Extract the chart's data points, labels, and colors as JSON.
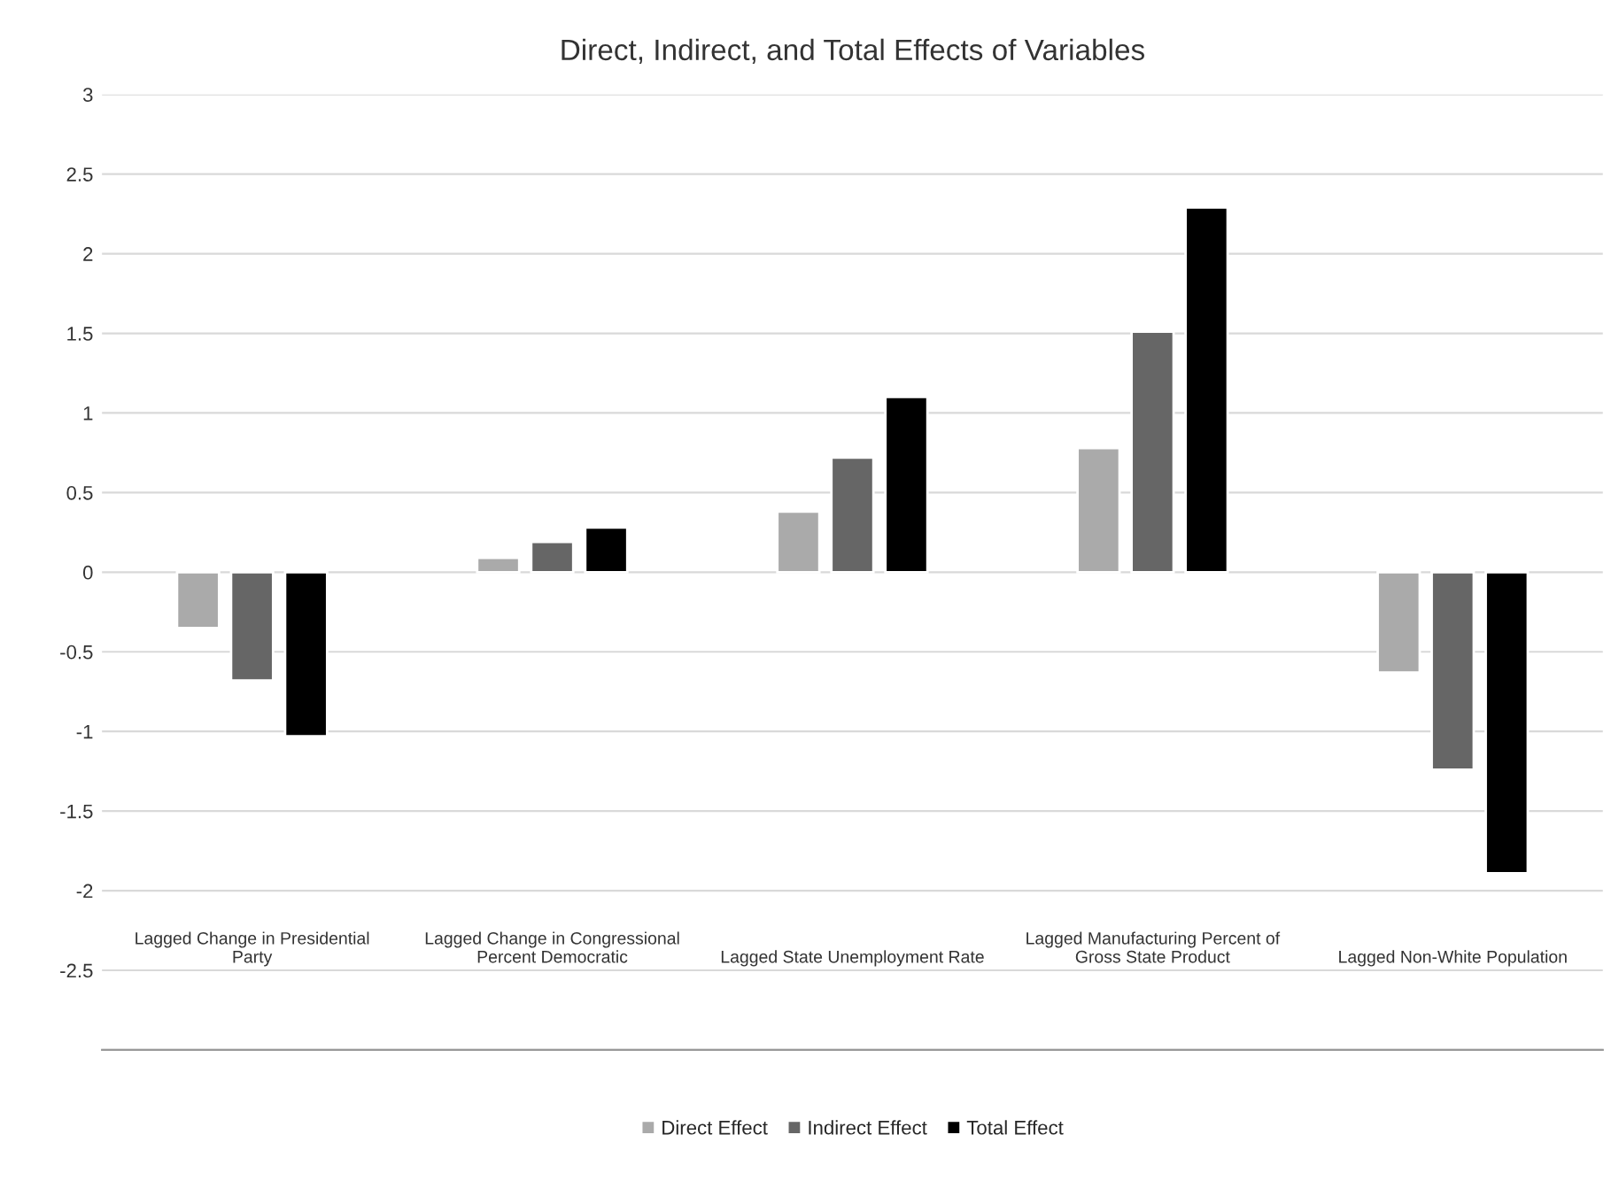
{
  "chart_data": {
    "type": "bar",
    "title": "Direct, Indirect, and Total Effects of Variables",
    "categories": [
      "Lagged Change in Presidential\nParty",
      "Lagged Change in Congressional\nPercent Democratic",
      "Lagged State Unemployment Rate",
      "Lagged Manufacturing Percent of\nGross State Product",
      "Lagged Non-White Population"
    ],
    "series": [
      {
        "name": "Direct Effect",
        "color": "#aaaaaa",
        "values": [
          -0.35,
          0.09,
          0.38,
          0.78,
          -0.63
        ]
      },
      {
        "name": "Indirect Effect",
        "color": "#666666",
        "values": [
          -0.68,
          0.19,
          0.72,
          1.51,
          -1.24
        ]
      },
      {
        "name": "Total Effect",
        "color": "#000000",
        "values": [
          -1.03,
          0.28,
          1.1,
          2.29,
          -1.89
        ]
      }
    ],
    "ylim": [
      -3,
      3
    ],
    "yticks": [
      {
        "value": -3,
        "label": null
      },
      -2.5,
      -2,
      -1.5,
      -1,
      -0.5,
      0,
      0.5,
      1,
      1.5,
      2,
      2.5,
      3
    ],
    "grid": "y",
    "legend": "bottom"
  }
}
